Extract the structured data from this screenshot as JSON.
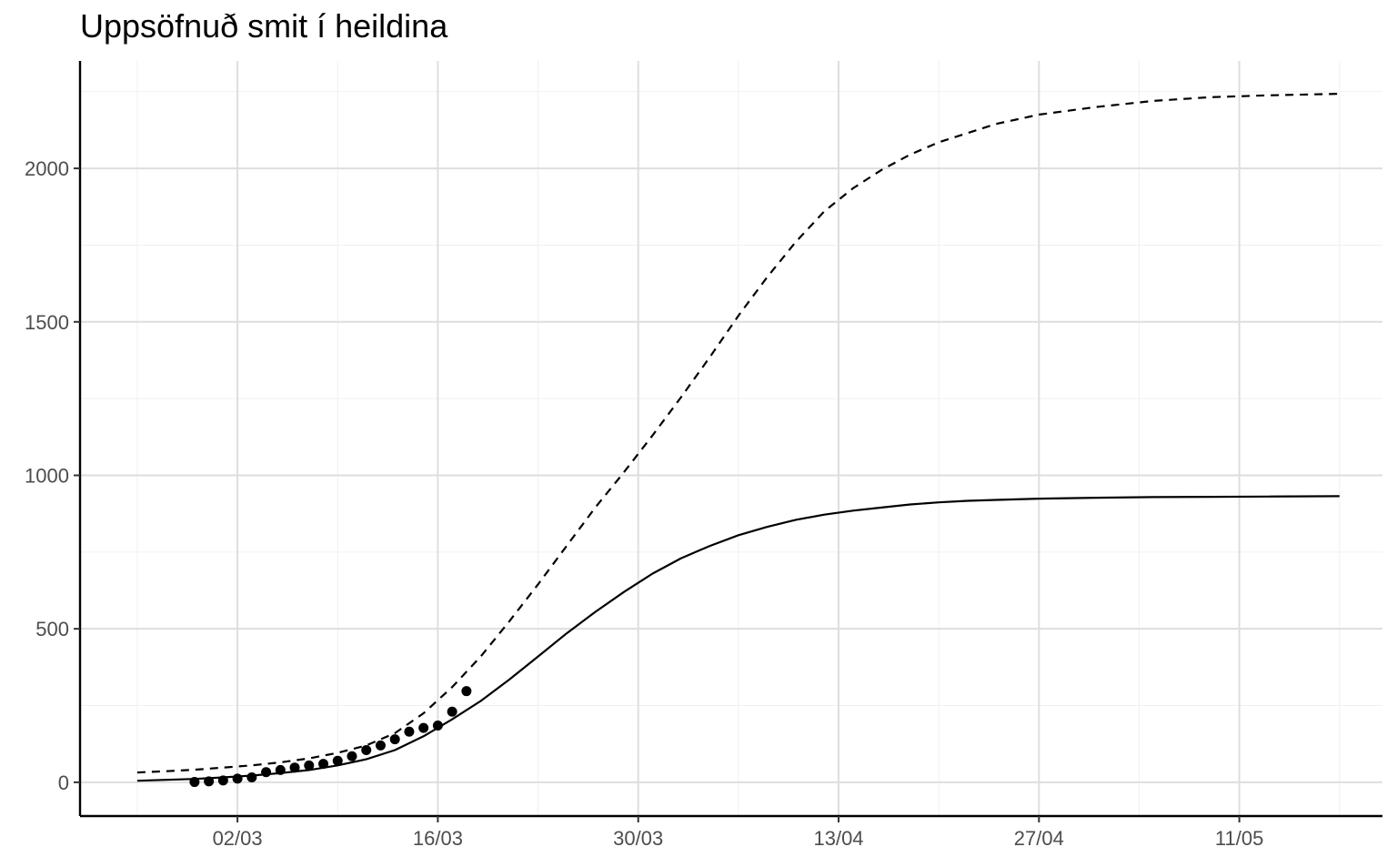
{
  "chart_data": {
    "type": "line",
    "title": "Uppsöfnuð smit í heildina",
    "xlabel": "",
    "ylabel": "",
    "x_axis": {
      "type": "date",
      "range": [
        "2020-02-20",
        "2020-05-21"
      ],
      "ticks": [
        {
          "date": "2020-03-02",
          "label": "02/03"
        },
        {
          "date": "2020-03-16",
          "label": "16/03"
        },
        {
          "date": "2020-03-30",
          "label": "30/03"
        },
        {
          "date": "2020-04-13",
          "label": "13/04"
        },
        {
          "date": "2020-04-27",
          "label": "27/04"
        },
        {
          "date": "2020-05-11",
          "label": "11/05"
        }
      ]
    },
    "y_axis": {
      "range": [
        -110,
        2350
      ],
      "ticks": [
        0,
        500,
        1000,
        1500,
        2000
      ]
    },
    "grid": true,
    "series": [
      {
        "style": "solid",
        "points": [
          [
            "2020-02-24",
            5
          ],
          [
            "2020-02-26",
            8
          ],
          [
            "2020-02-28",
            11
          ],
          [
            "2020-03-01",
            16
          ],
          [
            "2020-03-03",
            22
          ],
          [
            "2020-03-05",
            30
          ],
          [
            "2020-03-07",
            40
          ],
          [
            "2020-03-09",
            55
          ],
          [
            "2020-03-11",
            75
          ],
          [
            "2020-03-13",
            105
          ],
          [
            "2020-03-15",
            150
          ],
          [
            "2020-03-17",
            205
          ],
          [
            "2020-03-19",
            265
          ],
          [
            "2020-03-21",
            335
          ],
          [
            "2020-03-23",
            410
          ],
          [
            "2020-03-25",
            485
          ],
          [
            "2020-03-27",
            555
          ],
          [
            "2020-03-29",
            620
          ],
          [
            "2020-03-31",
            680
          ],
          [
            "2020-04-02",
            730
          ],
          [
            "2020-04-04",
            770
          ],
          [
            "2020-04-06",
            805
          ],
          [
            "2020-04-08",
            832
          ],
          [
            "2020-04-10",
            855
          ],
          [
            "2020-04-12",
            872
          ],
          [
            "2020-04-14",
            885
          ],
          [
            "2020-04-16",
            895
          ],
          [
            "2020-04-18",
            905
          ],
          [
            "2020-04-20",
            912
          ],
          [
            "2020-04-22",
            917
          ],
          [
            "2020-04-24",
            920
          ],
          [
            "2020-04-27",
            924
          ],
          [
            "2020-05-01",
            927
          ],
          [
            "2020-05-05",
            929
          ],
          [
            "2020-05-09",
            930
          ],
          [
            "2020-05-13",
            931
          ],
          [
            "2020-05-18",
            932
          ]
        ]
      },
      {
        "style": "dashed",
        "points": [
          [
            "2020-02-24",
            32
          ],
          [
            "2020-02-26",
            36
          ],
          [
            "2020-02-28",
            41
          ],
          [
            "2020-03-01",
            48
          ],
          [
            "2020-03-03",
            55
          ],
          [
            "2020-03-05",
            65
          ],
          [
            "2020-03-07",
            78
          ],
          [
            "2020-03-09",
            96
          ],
          [
            "2020-03-11",
            120
          ],
          [
            "2020-03-13",
            160
          ],
          [
            "2020-03-15",
            225
          ],
          [
            "2020-03-17",
            310
          ],
          [
            "2020-03-19",
            410
          ],
          [
            "2020-03-21",
            525
          ],
          [
            "2020-03-23",
            645
          ],
          [
            "2020-03-25",
            770
          ],
          [
            "2020-03-27",
            895
          ],
          [
            "2020-03-29",
            1010
          ],
          [
            "2020-03-31",
            1130
          ],
          [
            "2020-04-02",
            1255
          ],
          [
            "2020-04-04",
            1385
          ],
          [
            "2020-04-06",
            1520
          ],
          [
            "2020-04-08",
            1645
          ],
          [
            "2020-04-10",
            1760
          ],
          [
            "2020-04-12",
            1860
          ],
          [
            "2020-04-14",
            1935
          ],
          [
            "2020-04-16",
            1995
          ],
          [
            "2020-04-18",
            2045
          ],
          [
            "2020-04-20",
            2085
          ],
          [
            "2020-04-22",
            2115
          ],
          [
            "2020-04-24",
            2145
          ],
          [
            "2020-04-27",
            2175
          ],
          [
            "2020-05-01",
            2200
          ],
          [
            "2020-05-05",
            2220
          ],
          [
            "2020-05-09",
            2232
          ],
          [
            "2020-05-13",
            2238
          ],
          [
            "2020-05-18",
            2243
          ]
        ]
      },
      {
        "style": "points",
        "points": [
          [
            "2020-02-28",
            1
          ],
          [
            "2020-02-29",
            3
          ],
          [
            "2020-03-01",
            6
          ],
          [
            "2020-03-02",
            12
          ],
          [
            "2020-03-03",
            16
          ],
          [
            "2020-03-04",
            33
          ],
          [
            "2020-03-05",
            40
          ],
          [
            "2020-03-06",
            48
          ],
          [
            "2020-03-07",
            55
          ],
          [
            "2020-03-08",
            60
          ],
          [
            "2020-03-09",
            70
          ],
          [
            "2020-03-10",
            85
          ],
          [
            "2020-03-11",
            105
          ],
          [
            "2020-03-12",
            120
          ],
          [
            "2020-03-13",
            140
          ],
          [
            "2020-03-14",
            165
          ],
          [
            "2020-03-15",
            177
          ],
          [
            "2020-03-16",
            185
          ],
          [
            "2020-03-17",
            230
          ],
          [
            "2020-03-18",
            297
          ]
        ]
      }
    ]
  }
}
